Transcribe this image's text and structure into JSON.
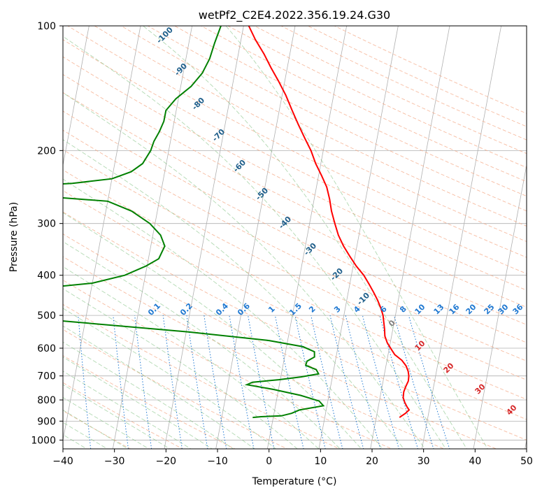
{
  "chart_data": {
    "type": "line",
    "title": "wetPf2_C2E4.2022.356.19.24.G30",
    "xlabel": "Temperature (°C)",
    "ylabel": "Pressure (hPa)",
    "xlim": [
      -40,
      50
    ],
    "ylim": [
      1050,
      100
    ],
    "y_scale": "log",
    "grid": true,
    "x_ticks": [
      -40,
      -30,
      -20,
      -10,
      0,
      10,
      20,
      30,
      40,
      50
    ],
    "y_ticks": [
      100,
      200,
      300,
      400,
      500,
      600,
      700,
      800,
      900,
      1000
    ],
    "skew": true,
    "series": [
      {
        "color": "#ff0000",
        "points": [
          [
            24.5,
            882
          ],
          [
            25.5,
            862
          ],
          [
            26.1,
            846
          ],
          [
            25.6,
            832
          ],
          [
            25.0,
            812
          ],
          [
            24.5,
            790
          ],
          [
            24.4,
            765
          ],
          [
            24.6,
            742
          ],
          [
            24.9,
            720
          ],
          [
            24.8,
            700
          ],
          [
            24.5,
            682
          ],
          [
            23.9,
            662
          ],
          [
            22.9,
            642
          ],
          [
            21.3,
            622
          ],
          [
            20.4,
            603
          ],
          [
            19.4,
            582
          ],
          [
            18.7,
            561
          ],
          [
            18.4,
            540
          ],
          [
            18.0,
            520
          ],
          [
            17.6,
            500
          ],
          [
            16.9,
            480
          ],
          [
            16.0,
            460
          ],
          [
            15.0,
            441
          ],
          [
            13.8,
            421
          ],
          [
            12.4,
            400
          ],
          [
            10.6,
            380
          ],
          [
            9.0,
            360
          ],
          [
            7.4,
            340
          ],
          [
            6.0,
            320
          ],
          [
            4.9,
            300
          ],
          [
            3.8,
            280
          ],
          [
            3.0,
            262
          ],
          [
            2.0,
            245
          ],
          [
            0.6,
            230
          ],
          [
            -1.0,
            215
          ],
          [
            -2.4,
            200
          ],
          [
            -4.0,
            187
          ],
          [
            -5.8,
            173
          ],
          [
            -7.5,
            160
          ],
          [
            -9.3,
            147
          ],
          [
            -11.2,
            136
          ],
          [
            -13.2,
            126
          ],
          [
            -15.0,
            117
          ],
          [
            -17.2,
            108
          ],
          [
            -19.0,
            100
          ]
        ]
      },
      {
        "color": "#008000",
        "points": [
          [
            -4.0,
            882
          ],
          [
            -2.4,
            878
          ],
          [
            1.5,
            874
          ],
          [
            3.4,
            862
          ],
          [
            4.8,
            846
          ],
          [
            9.3,
            826
          ],
          [
            8.3,
            805
          ],
          [
            4.5,
            780
          ],
          [
            -0.9,
            755
          ],
          [
            -6.3,
            735
          ],
          [
            -5.3,
            725
          ],
          [
            -0.3,
            715
          ],
          [
            3.9,
            704
          ],
          [
            7.2,
            692
          ],
          [
            6.6,
            676
          ],
          [
            4.4,
            660
          ],
          [
            4.5,
            645
          ],
          [
            5.8,
            630
          ],
          [
            5.6,
            612
          ],
          [
            3.2,
            595
          ],
          [
            -3.6,
            575
          ],
          [
            -19.6,
            548
          ],
          [
            -45,
            515
          ],
          [
            -55,
            508
          ],
          [
            -65,
            505
          ],
          [
            -71,
            500
          ],
          [
            -58,
            492
          ],
          [
            -50,
            488
          ],
          [
            -56,
            484
          ],
          [
            -71,
            478
          ],
          [
            -80,
            473
          ],
          [
            -80,
            440
          ],
          [
            -68,
            437
          ],
          [
            -50,
            430
          ],
          [
            -40,
            418
          ],
          [
            -34,
            400
          ],
          [
            -30.2,
            380
          ],
          [
            -28,
            365
          ],
          [
            -27.3,
            340
          ],
          [
            -28.5,
            320
          ],
          [
            -31,
            300
          ],
          [
            -35,
            280
          ],
          [
            -40,
            265
          ],
          [
            -58,
            255
          ],
          [
            -62,
            249
          ],
          [
            -61,
            245
          ],
          [
            -47.5,
            240
          ],
          [
            -40,
            234
          ],
          [
            -36.5,
            225
          ],
          [
            -34.6,
            215
          ],
          [
            -33.5,
            200
          ],
          [
            -33.2,
            190
          ],
          [
            -32.5,
            180
          ],
          [
            -32.0,
            170
          ],
          [
            -32.0,
            160
          ],
          [
            -30.5,
            150
          ],
          [
            -28.0,
            140
          ],
          [
            -26.3,
            130
          ],
          [
            -25.4,
            120
          ],
          [
            -25.0,
            110
          ],
          [
            -24.4,
            100
          ]
        ]
      }
    ],
    "dry_adiabat_labels": [
      "-100",
      "-90",
      "-80",
      "-70",
      "-60",
      "-50",
      "-40",
      "-30",
      "-20",
      "-10"
    ],
    "moist_adiabat_labels": [
      "0",
      "10",
      "20",
      "30",
      "40"
    ],
    "mixing_ratio_labels": [
      "0.1",
      "0.2",
      "0.4",
      "0.6",
      "1",
      "1.5",
      "2",
      "3",
      "4",
      "6",
      "8",
      "10",
      "13",
      "16",
      "20",
      "25",
      "30",
      "36"
    ],
    "colors": {
      "isotherm": "#b0b0b0",
      "dry_adiabat": "#f4a582",
      "moist_adiabat": "#7fbf7f",
      "mixing_ratio": "#1f78d1",
      "dry_label": "#1f5f8b",
      "moist_label": "#d62728",
      "mixing_label": "#1f78d1"
    }
  }
}
